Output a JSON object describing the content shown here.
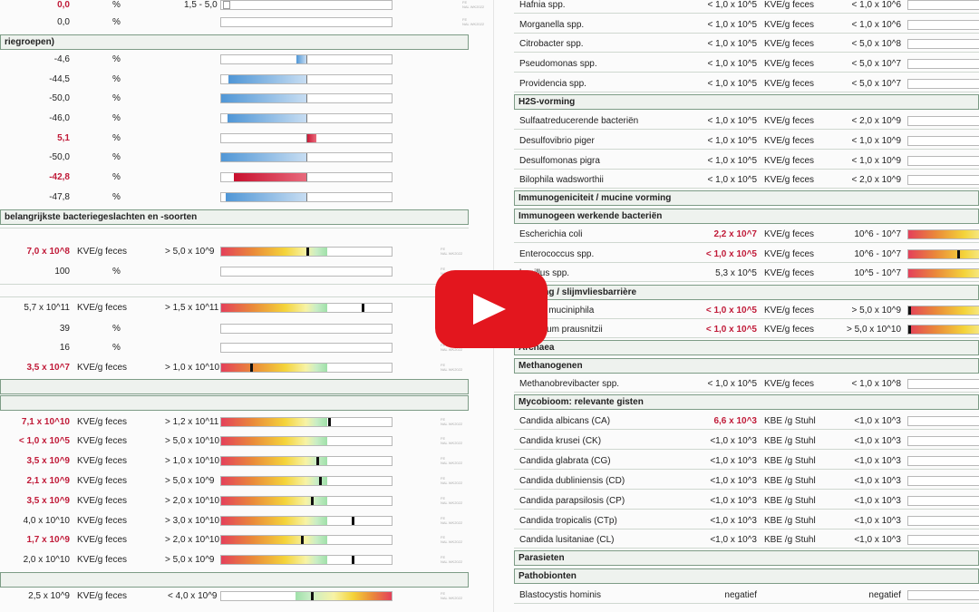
{
  "colors": {
    "accent_red": "#c01a38",
    "header_border": "#7d9c86",
    "play_red": "#e3161e"
  },
  "left": {
    "rows_top": [
      {
        "value": "0,0",
        "red": true,
        "unit": "%",
        "ref": "1,5 - 5,0",
        "bar": "empty"
      },
      {
        "value": "0,0",
        "red": false,
        "unit": "%",
        "ref": "",
        "bar": "empty"
      }
    ],
    "header_groups": "riegroepen)",
    "pct_rows": [
      {
        "value": "-4,6",
        "red": false,
        "unit": "%",
        "bar_fraction": 0.06,
        "bar_color": "blue"
      },
      {
        "value": "-44,5",
        "red": false,
        "unit": "%",
        "bar_fraction": 0.45,
        "bar_color": "blue"
      },
      {
        "value": "-50,0",
        "red": false,
        "unit": "%",
        "bar_fraction": 0.5,
        "bar_color": "blue"
      },
      {
        "value": "-46,0",
        "red": false,
        "unit": "%",
        "bar_fraction": 0.46,
        "bar_color": "blue"
      },
      {
        "value": "5,1",
        "red": true,
        "unit": "%",
        "bar_fraction": 0.06,
        "bar_color": "red"
      },
      {
        "value": "-50,0",
        "red": false,
        "unit": "%",
        "bar_fraction": 0.5,
        "bar_color": "blue"
      },
      {
        "value": "-42,8",
        "red": true,
        "unit": "%",
        "bar_fraction": 0.42,
        "bar_color": "red"
      },
      {
        "value": "-47,8",
        "red": false,
        "unit": "%",
        "bar_fraction": 0.47,
        "bar_color": "blue"
      }
    ],
    "header_genera": " belangrijkste bacteriegeslachten en -soorten",
    "rows_mid": [
      {
        "value": "7,0 x 10^8",
        "red": true,
        "unit": "KVE/g feces",
        "ref": "> 5,0 x 10^9",
        "marker": 0.5
      },
      {
        "value": "100",
        "red": false,
        "unit": "%",
        "ref": "",
        "marker": null
      },
      {
        "value": "5,7 x 10^11",
        "red": false,
        "unit": "KVE/g feces",
        "ref": "> 1,5 x 10^11",
        "marker": 0.83
      },
      {
        "value": "39",
        "red": false,
        "unit": "%",
        "ref": "",
        "marker": null
      },
      {
        "value": "16",
        "red": false,
        "unit": "%",
        "ref": "",
        "marker": null
      },
      {
        "value": "3,5 x 10^7",
        "red": true,
        "unit": "KVE/g feces",
        "ref": "> 1,0 x 10^10",
        "marker": 0.17
      }
    ],
    "rows_bottom": [
      {
        "value": "7,1 x 10^10",
        "red": true,
        "unit": "KVE/g feces",
        "ref": "> 1,2 x 10^11",
        "marker": 0.63
      },
      {
        "value": "< 1,0 x 10^5",
        "red": true,
        "unit": "KVE/g feces",
        "ref": "> 5,0 x 10^10",
        "marker": null
      },
      {
        "value": "3,5 x 10^9",
        "red": true,
        "unit": "KVE/g feces",
        "ref": "> 1,0 x 10^10",
        "marker": 0.56
      },
      {
        "value": "2,1 x 10^9",
        "red": true,
        "unit": "KVE/g feces",
        "ref": "> 5,0 x 10^9",
        "marker": 0.58
      },
      {
        "value": "3,5 x 10^9",
        "red": true,
        "unit": "KVE/g feces",
        "ref": "> 2,0 x 10^10",
        "marker": 0.53
      },
      {
        "value": "4,0 x 10^10",
        "red": false,
        "unit": "KVE/g feces",
        "ref": "> 3,0 x 10^10",
        "marker": 0.77
      },
      {
        "value": "1,7 x 10^9",
        "red": true,
        "unit": "KVE/g feces",
        "ref": "> 2,0 x 10^10",
        "marker": 0.47
      },
      {
        "value": "2,0 x 10^10",
        "red": false,
        "unit": "KVE/g feces",
        "ref": "> 5,0 x 10^9",
        "marker": 0.77
      }
    ],
    "row_last": {
      "value": "2,5 x 10^9",
      "red": false,
      "unit": "KVE/g feces",
      "ref": "< 4,0 x 10^9",
      "marker": 0.53
    }
  },
  "right": {
    "rows_a": [
      {
        "name": "Hafnia spp.",
        "value": "< 1,0 x 10^5",
        "red": false,
        "unit": "KVE/g feces",
        "ref": "< 1,0 x 10^6"
      },
      {
        "name": "Morganella spp.",
        "value": "< 1,0 x 10^5",
        "red": false,
        "unit": "KVE/g feces",
        "ref": "< 1,0 x 10^6"
      },
      {
        "name": "Citrobacter spp.",
        "value": "< 1,0 x 10^5",
        "red": false,
        "unit": "KVE/g feces",
        "ref": "< 5,0 x 10^8"
      },
      {
        "name": "Pseudomonas spp.",
        "value": "< 1,0 x 10^5",
        "red": false,
        "unit": "KVE/g feces",
        "ref": "< 5,0 x 10^7"
      },
      {
        "name": "Providencia spp.",
        "value": "< 1,0 x 10^5",
        "red": false,
        "unit": "KVE/g feces",
        "ref": "< 5,0 x 10^7"
      }
    ],
    "header_h2s": "H2S-vorming",
    "rows_h2s": [
      {
        "name": "Sulfaatreducerende bacteriën",
        "value": "< 1,0 x 10^5",
        "red": false,
        "unit": "KVE/g feces",
        "ref": "< 2,0 x 10^9"
      },
      {
        "name": "Desulfovibrio piger",
        "value": "< 1,0 x 10^5",
        "red": false,
        "unit": "KVE/g feces",
        "ref": "< 1,0 x 10^9"
      },
      {
        "name": "Desulfomonas pigra",
        "value": "< 1,0 x 10^5",
        "red": false,
        "unit": "KVE/g feces",
        "ref": "< 1,0 x 10^9"
      },
      {
        "name": "Bilophila wadsworthii",
        "value": "< 1,0 x 10^5",
        "red": false,
        "unit": "KVE/g feces",
        "ref": "< 2,0 x 10^9"
      }
    ],
    "header_immuno": "Immunogeniciteit / mucine vorming",
    "header_immuno2": "Immunogeen werkende bacteriën",
    "rows_immuno": [
      {
        "name": "Escherichia coli",
        "value": "2,2 x 10^7",
        "red": true,
        "unit": "KVE/g feces",
        "ref": "10^6 - 10^7"
      },
      {
        "name": "Enterococcus spp.",
        "value": "< 1,0 x 10^5",
        "red": true,
        "unit": "KVE/g feces",
        "ref": "10^6 - 10^7"
      },
      {
        "name": "bacillus spp.",
        "value": "5,3 x 10^5",
        "red": false,
        "unit": "KVE/g feces",
        "ref": "10^5 - 10^7"
      }
    ],
    "header_mucin": "vorming / slijmvliesbarrière",
    "rows_mucin": [
      {
        "name": "nansia muciniphila",
        "value": "< 1,0 x 10^5",
        "red": true,
        "unit": "KVE/g feces",
        "ref": "> 5,0 x 10^9"
      },
      {
        "name": "bacterium prausnitzii",
        "value": "< 1,0 x 10^5",
        "red": true,
        "unit": "KVE/g feces",
        "ref": "> 5,0 x 10^10"
      }
    ],
    "header_archaea": "Archaea",
    "header_methano": "Methanogenen",
    "rows_methano": [
      {
        "name": "Methanobrevibacter spp.",
        "value": "< 1,0 x 10^5",
        "red": false,
        "unit": "KVE/g feces",
        "ref": "< 1,0 x 10^8"
      }
    ],
    "header_myco": "Mycobioom: relevante gisten",
    "rows_myco": [
      {
        "name": "Candida albicans (CA)",
        "value": "6,6 x 10^3",
        "red": true,
        "unit": "KBE /g Stuhl",
        "ref": "<1,0 x 10^3"
      },
      {
        "name": "Candida krusei (CK)",
        "value": "<1,0 x 10^3",
        "red": false,
        "unit": "KBE /g Stuhl",
        "ref": "<1,0 x 10^3"
      },
      {
        "name": "Candida glabrata (CG)",
        "value": "<1,0 x 10^3",
        "red": false,
        "unit": "KBE /g Stuhl",
        "ref": "<1,0 x 10^3"
      },
      {
        "name": "Candida dubliniensis (CD)",
        "value": "<1,0 x 10^3",
        "red": false,
        "unit": "KBE /g Stuhl",
        "ref": "<1,0 x 10^3"
      },
      {
        "name": "Candida parapsilosis (CP)",
        "value": "<1,0 x 10^3",
        "red": false,
        "unit": "KBE /g Stuhl",
        "ref": "<1,0 x 10^3"
      },
      {
        "name": "Candida tropicalis (CTp)",
        "value": "<1,0 x 10^3",
        "red": false,
        "unit": "KBE /g Stuhl",
        "ref": "<1,0 x 10^3"
      },
      {
        "name": "Candida lusitaniae (CL)",
        "value": "<1,0 x 10^3",
        "red": false,
        "unit": "KBE /g Stuhl",
        "ref": "<1,0 x 10^3"
      }
    ],
    "header_para": "Parasieten",
    "header_patho": "Pathobionten",
    "rows_patho": [
      {
        "name": "Blastocystis hominis",
        "value": "negatief",
        "red": false,
        "unit": "",
        "ref": "negatief"
      }
    ]
  },
  "video": {
    "play_icon": "play-icon"
  }
}
